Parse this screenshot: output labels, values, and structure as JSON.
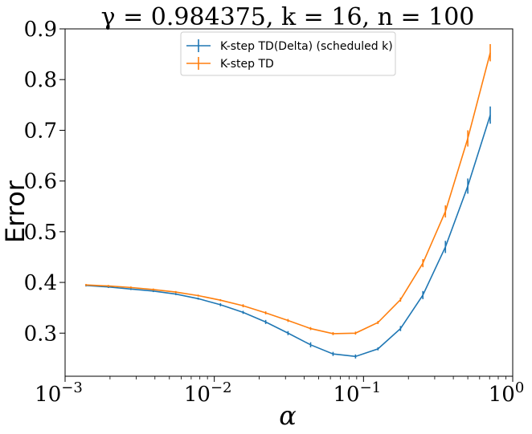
{
  "chart_data": {
    "type": "line",
    "title": "γ = 0.984375, k = 16, n = 100",
    "xlabel": "α",
    "ylabel": "Error",
    "xscale": "log",
    "xlim": [
      0.001,
      1
    ],
    "ylim": [
      0.215,
      0.9
    ],
    "x_ticks": [
      {
        "value": 0.001,
        "base": "10",
        "exp": "−3"
      },
      {
        "value": 0.01,
        "base": "10",
        "exp": "−2"
      },
      {
        "value": 0.1,
        "base": "10",
        "exp": "−1"
      },
      {
        "value": 1,
        "base": "10",
        "exp": "0"
      }
    ],
    "y_ticks": [
      {
        "value": 0.3,
        "label": "0.3"
      },
      {
        "value": 0.4,
        "label": "0.4"
      },
      {
        "value": 0.5,
        "label": "0.5"
      },
      {
        "value": 0.6,
        "label": "0.6"
      },
      {
        "value": 0.7,
        "label": "0.7"
      },
      {
        "value": 0.8,
        "label": "0.8"
      },
      {
        "value": 0.9,
        "label": "0.9"
      }
    ],
    "legend_position": "upper-center",
    "grid": false,
    "x": [
      0.00138,
      0.00195,
      0.00276,
      0.0039,
      0.00552,
      0.0078,
      0.011,
      0.0156,
      0.0221,
      0.0312,
      0.0442,
      0.0625,
      0.0884,
      0.125,
      0.177,
      0.25,
      0.354,
      0.5,
      0.707
    ],
    "series": [
      {
        "name": "K-step TD(Delta) (scheduled k)",
        "color": "#1f77b4",
        "values": [
          0.394,
          0.391,
          0.387,
          0.383,
          0.377,
          0.368,
          0.356,
          0.341,
          0.322,
          0.3,
          0.277,
          0.259,
          0.254,
          0.269,
          0.309,
          0.375,
          0.47,
          0.59,
          0.73
        ],
        "err": [
          0.002,
          0.002,
          0.002,
          0.002,
          0.002,
          0.002,
          0.003,
          0.003,
          0.004,
          0.004,
          0.005,
          0.004,
          0.004,
          0.003,
          0.005,
          0.008,
          0.012,
          0.015,
          0.017
        ]
      },
      {
        "name": "K-step TD",
        "color": "#ff7f0e",
        "values": [
          0.395,
          0.393,
          0.39,
          0.386,
          0.381,
          0.374,
          0.365,
          0.354,
          0.34,
          0.325,
          0.309,
          0.299,
          0.3,
          0.321,
          0.366,
          0.438,
          0.54,
          0.684,
          0.853
        ],
        "err": [
          0.002,
          0.002,
          0.002,
          0.002,
          0.002,
          0.002,
          0.002,
          0.003,
          0.003,
          0.003,
          0.003,
          0.003,
          0.003,
          0.003,
          0.004,
          0.008,
          0.012,
          0.016,
          0.017
        ]
      }
    ]
  }
}
